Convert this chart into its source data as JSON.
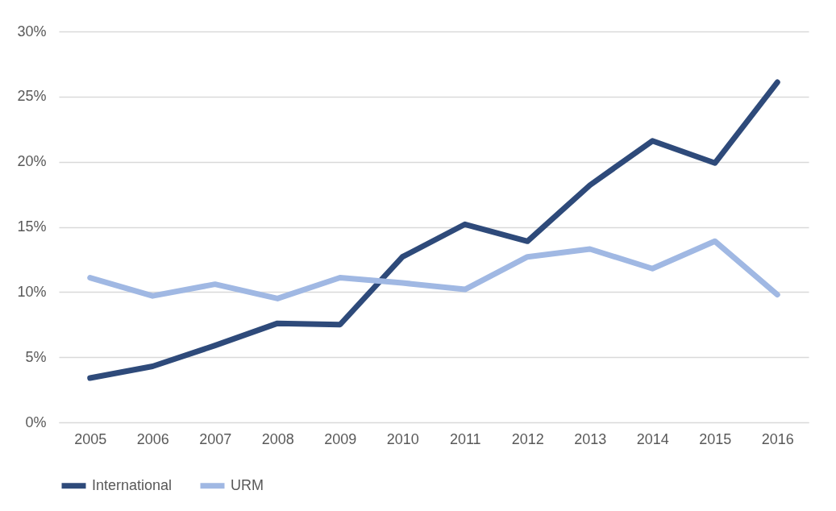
{
  "chart_data": {
    "type": "line",
    "categories": [
      "2005",
      "2006",
      "2007",
      "2008",
      "2009",
      "2010",
      "2011",
      "2012",
      "2013",
      "2014",
      "2015",
      "2016"
    ],
    "series": [
      {
        "name": "International",
        "color": "#2e4a7a",
        "values": [
          3.4,
          4.3,
          5.9,
          7.6,
          7.5,
          12.7,
          15.2,
          13.9,
          18.2,
          21.6,
          19.9,
          26.1
        ]
      },
      {
        "name": "URM",
        "color": "#a0b8e3",
        "values": [
          11.1,
          9.7,
          10.6,
          9.5,
          11.1,
          10.7,
          10.2,
          12.7,
          13.3,
          11.8,
          13.9,
          9.8
        ]
      }
    ],
    "ylim": [
      0,
      30
    ],
    "yticks": [
      {
        "value": 0,
        "label": "0%"
      },
      {
        "value": 5,
        "label": "5%"
      },
      {
        "value": 10,
        "label": "10%"
      },
      {
        "value": 15,
        "label": "15%"
      },
      {
        "value": 20,
        "label": "20%"
      },
      {
        "value": 25,
        "label": "25%"
      },
      {
        "value": 30,
        "label": "30%"
      }
    ],
    "grid": "y",
    "legend": "bottom",
    "marker": "none",
    "line_style": "solid"
  }
}
